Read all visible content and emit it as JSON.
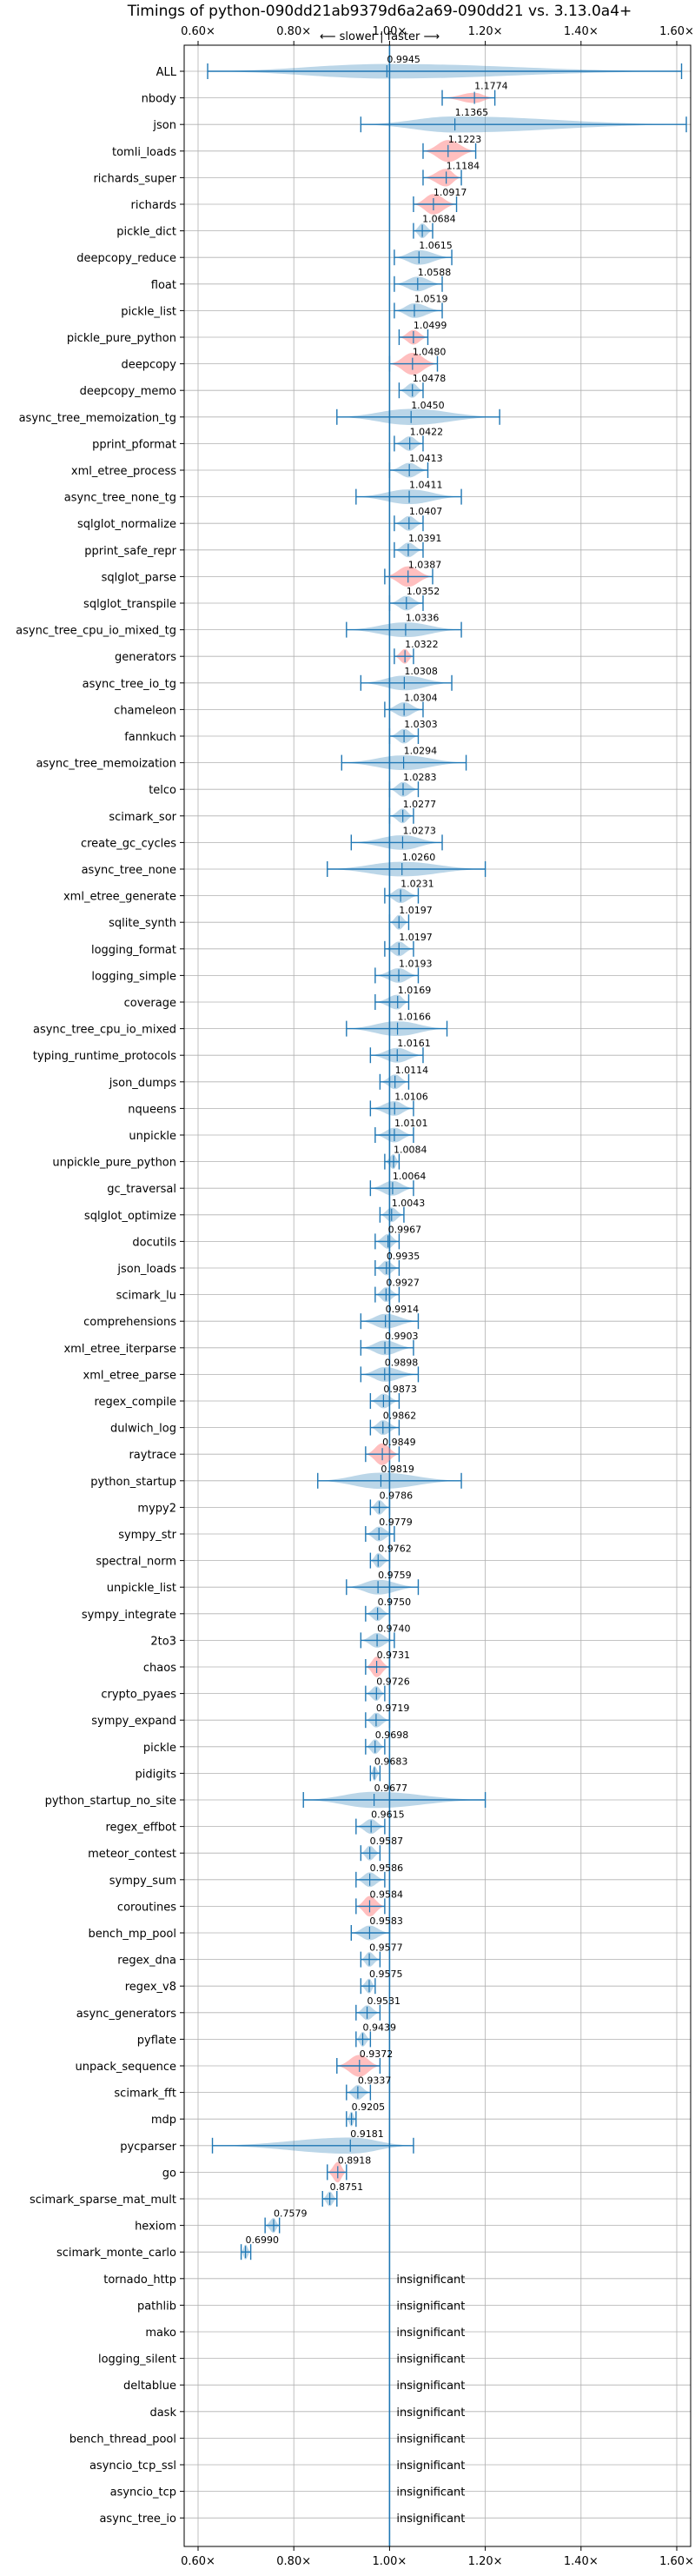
{
  "chart_data": {
    "type": "violin",
    "title": "Timings of python-090dd21ab9379d6a2a69-090dd21 vs. 3.13.0a4+",
    "direction_label": "⟵ slower | faster ⟶",
    "xlim": [
      0.6,
      1.6
    ],
    "x_ticks": [
      "0.60×",
      "0.80×",
      "1.00×",
      "1.20×",
      "1.40×",
      "1.60×"
    ],
    "x_tick_values": [
      0.6,
      0.8,
      1.0,
      1.2,
      1.4,
      1.6
    ],
    "colors": {
      "violin": "#1f77b4",
      "highlight": "#ff7f7f",
      "grid": "#b0b0b0"
    },
    "benchmarks": [
      {
        "name": "ALL",
        "value": 0.9945,
        "label": "0.9945",
        "whisker": [
          0.62,
          1.61
        ],
        "width": 0.5,
        "highlight": false
      },
      {
        "name": "nbody",
        "value": 1.1774,
        "label": "1.1774",
        "whisker": [
          1.11,
          1.22
        ],
        "width": 0.35,
        "highlight": true
      },
      {
        "name": "json",
        "value": 1.1365,
        "label": "1.1365",
        "whisker": [
          0.94,
          1.62
        ],
        "width": 0.55,
        "highlight": false
      },
      {
        "name": "tomli_loads",
        "value": 1.1223,
        "label": "1.1223",
        "whisker": [
          1.07,
          1.18
        ],
        "width": 0.75,
        "highlight": true
      },
      {
        "name": "richards_super",
        "value": 1.1184,
        "label": "1.1184",
        "whisker": [
          1.07,
          1.15
        ],
        "width": 0.6,
        "highlight": true
      },
      {
        "name": "richards",
        "value": 1.0917,
        "label": "1.0917",
        "whisker": [
          1.05,
          1.14
        ],
        "width": 0.7,
        "highlight": true
      },
      {
        "name": "pickle_dict",
        "value": 1.0684,
        "label": "1.0684",
        "whisker": [
          1.05,
          1.09
        ],
        "width": 0.5,
        "highlight": false
      },
      {
        "name": "deepcopy_reduce",
        "value": 1.0615,
        "label": "1.0615",
        "whisker": [
          1.01,
          1.13
        ],
        "width": 0.5,
        "highlight": false
      },
      {
        "name": "float",
        "value": 1.0588,
        "label": "1.0588",
        "whisker": [
          1.01,
          1.11
        ],
        "width": 0.5,
        "highlight": false
      },
      {
        "name": "pickle_list",
        "value": 1.0519,
        "label": "1.0519",
        "whisker": [
          1.01,
          1.11
        ],
        "width": 0.5,
        "highlight": false
      },
      {
        "name": "pickle_pure_python",
        "value": 1.0499,
        "label": "1.0499",
        "whisker": [
          1.02,
          1.08
        ],
        "width": 0.5,
        "highlight": true
      },
      {
        "name": "deepcopy",
        "value": 1.048,
        "label": "1.0480",
        "whisker": [
          1.0,
          1.1
        ],
        "width": 0.75,
        "highlight": true
      },
      {
        "name": "deepcopy_memo",
        "value": 1.0478,
        "label": "1.0478",
        "whisker": [
          1.02,
          1.07
        ],
        "width": 0.5,
        "highlight": false
      },
      {
        "name": "async_tree_memoization_tg",
        "value": 1.045,
        "label": "1.0450",
        "whisker": [
          0.89,
          1.23
        ],
        "width": 0.55,
        "highlight": false
      },
      {
        "name": "pprint_pformat",
        "value": 1.0422,
        "label": "1.0422",
        "whisker": [
          1.01,
          1.07
        ],
        "width": 0.5,
        "highlight": false
      },
      {
        "name": "xml_etree_process",
        "value": 1.0413,
        "label": "1.0413",
        "whisker": [
          1.0,
          1.08
        ],
        "width": 0.5,
        "highlight": false
      },
      {
        "name": "async_tree_none_tg",
        "value": 1.0411,
        "label": "1.0411",
        "whisker": [
          0.93,
          1.15
        ],
        "width": 0.5,
        "highlight": false
      },
      {
        "name": "sqlglot_normalize",
        "value": 1.0407,
        "label": "1.0407",
        "whisker": [
          1.01,
          1.07
        ],
        "width": 0.5,
        "highlight": false
      },
      {
        "name": "pprint_safe_repr",
        "value": 1.0391,
        "label": "1.0391",
        "whisker": [
          1.01,
          1.07
        ],
        "width": 0.5,
        "highlight": false
      },
      {
        "name": "sqlglot_parse",
        "value": 1.0387,
        "label": "1.0387",
        "whisker": [
          0.99,
          1.09
        ],
        "width": 0.7,
        "highlight": true
      },
      {
        "name": "sqlglot_transpile",
        "value": 1.0352,
        "label": "1.0352",
        "whisker": [
          1.0,
          1.07
        ],
        "width": 0.5,
        "highlight": false
      },
      {
        "name": "async_tree_cpu_io_mixed_tg",
        "value": 1.0336,
        "label": "1.0336",
        "whisker": [
          0.91,
          1.15
        ],
        "width": 0.5,
        "highlight": false
      },
      {
        "name": "generators",
        "value": 1.0322,
        "label": "1.0322",
        "whisker": [
          1.01,
          1.05
        ],
        "width": 0.5,
        "highlight": true
      },
      {
        "name": "async_tree_io_tg",
        "value": 1.0308,
        "label": "1.0308",
        "whisker": [
          0.94,
          1.13
        ],
        "width": 0.5,
        "highlight": false
      },
      {
        "name": "chameleon",
        "value": 1.0304,
        "label": "1.0304",
        "whisker": [
          0.99,
          1.07
        ],
        "width": 0.5,
        "highlight": false
      },
      {
        "name": "fannkuch",
        "value": 1.0303,
        "label": "1.0303",
        "whisker": [
          1.0,
          1.06
        ],
        "width": 0.5,
        "highlight": false
      },
      {
        "name": "async_tree_memoization",
        "value": 1.0294,
        "label": "1.0294",
        "whisker": [
          0.9,
          1.16
        ],
        "width": 0.5,
        "highlight": false
      },
      {
        "name": "telco",
        "value": 1.0283,
        "label": "1.0283",
        "whisker": [
          1.0,
          1.06
        ],
        "width": 0.5,
        "highlight": false
      },
      {
        "name": "scimark_sor",
        "value": 1.0277,
        "label": "1.0277",
        "whisker": [
          1.0,
          1.05
        ],
        "width": 0.5,
        "highlight": false
      },
      {
        "name": "create_gc_cycles",
        "value": 1.0273,
        "label": "1.0273",
        "whisker": [
          0.92,
          1.11
        ],
        "width": 0.5,
        "highlight": false
      },
      {
        "name": "async_tree_none",
        "value": 1.026,
        "label": "1.0260",
        "whisker": [
          0.87,
          1.2
        ],
        "width": 0.5,
        "highlight": false
      },
      {
        "name": "xml_etree_generate",
        "value": 1.0231,
        "label": "1.0231",
        "whisker": [
          0.99,
          1.06
        ],
        "width": 0.5,
        "highlight": false
      },
      {
        "name": "sqlite_synth",
        "value": 1.0197,
        "label": "1.0197",
        "whisker": [
          1.0,
          1.04
        ],
        "width": 0.5,
        "highlight": false
      },
      {
        "name": "logging_format",
        "value": 1.0197,
        "label": "1.0197",
        "whisker": [
          0.99,
          1.05
        ],
        "width": 0.5,
        "highlight": false
      },
      {
        "name": "logging_simple",
        "value": 1.0193,
        "label": "1.0193",
        "whisker": [
          0.97,
          1.06
        ],
        "width": 0.5,
        "highlight": false
      },
      {
        "name": "coverage",
        "value": 1.0169,
        "label": "1.0169",
        "whisker": [
          0.97,
          1.04
        ],
        "width": 0.5,
        "highlight": false
      },
      {
        "name": "async_tree_cpu_io_mixed",
        "value": 1.0166,
        "label": "1.0166",
        "whisker": [
          0.91,
          1.12
        ],
        "width": 0.5,
        "highlight": false
      },
      {
        "name": "typing_runtime_protocols",
        "value": 1.0161,
        "label": "1.0161",
        "whisker": [
          0.96,
          1.07
        ],
        "width": 0.5,
        "highlight": false
      },
      {
        "name": "json_dumps",
        "value": 1.0114,
        "label": "1.0114",
        "whisker": [
          0.98,
          1.04
        ],
        "width": 0.5,
        "highlight": false
      },
      {
        "name": "nqueens",
        "value": 1.0106,
        "label": "1.0106",
        "whisker": [
          0.96,
          1.05
        ],
        "width": 0.5,
        "highlight": false
      },
      {
        "name": "unpickle",
        "value": 1.0101,
        "label": "1.0101",
        "whisker": [
          0.97,
          1.05
        ],
        "width": 0.5,
        "highlight": false
      },
      {
        "name": "unpickle_pure_python",
        "value": 1.0084,
        "label": "1.0084",
        "whisker": [
          0.99,
          1.02
        ],
        "width": 0.5,
        "highlight": false
      },
      {
        "name": "gc_traversal",
        "value": 1.0064,
        "label": "1.0064",
        "whisker": [
          0.96,
          1.05
        ],
        "width": 0.5,
        "highlight": false
      },
      {
        "name": "sqlglot_optimize",
        "value": 1.0043,
        "label": "1.0043",
        "whisker": [
          0.98,
          1.03
        ],
        "width": 0.5,
        "highlight": false
      },
      {
        "name": "docutils",
        "value": 0.9967,
        "label": "0.9967",
        "whisker": [
          0.97,
          1.02
        ],
        "width": 0.5,
        "highlight": false
      },
      {
        "name": "json_loads",
        "value": 0.9935,
        "label": "0.9935",
        "whisker": [
          0.97,
          1.02
        ],
        "width": 0.5,
        "highlight": false
      },
      {
        "name": "scimark_lu",
        "value": 0.9927,
        "label": "0.9927",
        "whisker": [
          0.97,
          1.02
        ],
        "width": 0.5,
        "highlight": false
      },
      {
        "name": "comprehensions",
        "value": 0.9914,
        "label": "0.9914",
        "whisker": [
          0.94,
          1.06
        ],
        "width": 0.5,
        "highlight": false
      },
      {
        "name": "xml_etree_iterparse",
        "value": 0.9903,
        "label": "0.9903",
        "whisker": [
          0.94,
          1.05
        ],
        "width": 0.5,
        "highlight": false
      },
      {
        "name": "xml_etree_parse",
        "value": 0.9898,
        "label": "0.9898",
        "whisker": [
          0.94,
          1.06
        ],
        "width": 0.5,
        "highlight": false
      },
      {
        "name": "regex_compile",
        "value": 0.9873,
        "label": "0.9873",
        "whisker": [
          0.96,
          1.02
        ],
        "width": 0.5,
        "highlight": false
      },
      {
        "name": "dulwich_log",
        "value": 0.9862,
        "label": "0.9862",
        "whisker": [
          0.96,
          1.02
        ],
        "width": 0.5,
        "highlight": false
      },
      {
        "name": "raytrace",
        "value": 0.9849,
        "label": "0.9849",
        "whisker": [
          0.95,
          1.02
        ],
        "width": 0.75,
        "highlight": true
      },
      {
        "name": "python_startup",
        "value": 0.9819,
        "label": "0.9819",
        "whisker": [
          0.85,
          1.15
        ],
        "width": 0.55,
        "highlight": false
      },
      {
        "name": "mypy2",
        "value": 0.9786,
        "label": "0.9786",
        "whisker": [
          0.96,
          1.0
        ],
        "width": 0.5,
        "highlight": false
      },
      {
        "name": "sympy_str",
        "value": 0.9779,
        "label": "0.9779",
        "whisker": [
          0.95,
          1.01
        ],
        "width": 0.5,
        "highlight": false
      },
      {
        "name": "spectral_norm",
        "value": 0.9762,
        "label": "0.9762",
        "whisker": [
          0.96,
          1.0
        ],
        "width": 0.5,
        "highlight": false
      },
      {
        "name": "unpickle_list",
        "value": 0.9759,
        "label": "0.9759",
        "whisker": [
          0.91,
          1.06
        ],
        "width": 0.5,
        "highlight": false
      },
      {
        "name": "sympy_integrate",
        "value": 0.975,
        "label": "0.9750",
        "whisker": [
          0.95,
          1.0
        ],
        "width": 0.5,
        "highlight": false
      },
      {
        "name": "2to3",
        "value": 0.974,
        "label": "0.9740",
        "whisker": [
          0.94,
          1.01
        ],
        "width": 0.5,
        "highlight": false
      },
      {
        "name": "chaos",
        "value": 0.9731,
        "label": "0.9731",
        "whisker": [
          0.95,
          1.0
        ],
        "width": 0.7,
        "highlight": true
      },
      {
        "name": "crypto_pyaes",
        "value": 0.9726,
        "label": "0.9726",
        "whisker": [
          0.95,
          0.99
        ],
        "width": 0.5,
        "highlight": false
      },
      {
        "name": "sympy_expand",
        "value": 0.9719,
        "label": "0.9719",
        "whisker": [
          0.95,
          1.0
        ],
        "width": 0.5,
        "highlight": false
      },
      {
        "name": "pickle",
        "value": 0.9698,
        "label": "0.9698",
        "whisker": [
          0.95,
          0.99
        ],
        "width": 0.5,
        "highlight": false
      },
      {
        "name": "pidigits",
        "value": 0.9683,
        "label": "0.9683",
        "whisker": [
          0.96,
          0.98
        ],
        "width": 0.5,
        "highlight": false
      },
      {
        "name": "python_startup_no_site",
        "value": 0.9677,
        "label": "0.9677",
        "whisker": [
          0.82,
          1.2
        ],
        "width": 0.55,
        "highlight": false
      },
      {
        "name": "regex_effbot",
        "value": 0.9615,
        "label": "0.9615",
        "whisker": [
          0.93,
          0.99
        ],
        "width": 0.5,
        "highlight": false
      },
      {
        "name": "meteor_contest",
        "value": 0.9587,
        "label": "0.9587",
        "whisker": [
          0.94,
          0.98
        ],
        "width": 0.5,
        "highlight": false
      },
      {
        "name": "sympy_sum",
        "value": 0.9586,
        "label": "0.9586",
        "whisker": [
          0.93,
          0.99
        ],
        "width": 0.5,
        "highlight": false
      },
      {
        "name": "coroutines",
        "value": 0.9584,
        "label": "0.9584",
        "whisker": [
          0.93,
          0.99
        ],
        "width": 0.7,
        "highlight": true
      },
      {
        "name": "bench_mp_pool",
        "value": 0.9583,
        "label": "0.9583",
        "whisker": [
          0.92,
          1.0
        ],
        "width": 0.5,
        "highlight": false
      },
      {
        "name": "regex_dna",
        "value": 0.9577,
        "label": "0.9577",
        "whisker": [
          0.94,
          0.98
        ],
        "width": 0.5,
        "highlight": false
      },
      {
        "name": "regex_v8",
        "value": 0.9575,
        "label": "0.9575",
        "whisker": [
          0.94,
          0.97
        ],
        "width": 0.5,
        "highlight": false
      },
      {
        "name": "async_generators",
        "value": 0.9531,
        "label": "0.9531",
        "whisker": [
          0.93,
          0.98
        ],
        "width": 0.5,
        "highlight": false
      },
      {
        "name": "pyflate",
        "value": 0.9439,
        "label": "0.9439",
        "whisker": [
          0.93,
          0.96
        ],
        "width": 0.5,
        "highlight": false
      },
      {
        "name": "unpack_sequence",
        "value": 0.9372,
        "label": "0.9372",
        "whisker": [
          0.89,
          0.98
        ],
        "width": 0.75,
        "highlight": true
      },
      {
        "name": "scimark_fft",
        "value": 0.9337,
        "label": "0.9337",
        "whisker": [
          0.91,
          0.96
        ],
        "width": 0.5,
        "highlight": false
      },
      {
        "name": "mdp",
        "value": 0.9205,
        "label": "0.9205",
        "whisker": [
          0.91,
          0.93
        ],
        "width": 0.5,
        "highlight": false
      },
      {
        "name": "pycparser",
        "value": 0.9181,
        "label": "0.9181",
        "whisker": [
          0.63,
          1.05
        ],
        "width": 0.55,
        "highlight": false
      },
      {
        "name": "go",
        "value": 0.8918,
        "label": "0.8918",
        "whisker": [
          0.87,
          0.91
        ],
        "width": 0.7,
        "highlight": true
      },
      {
        "name": "scimark_sparse_mat_mult",
        "value": 0.8751,
        "label": "0.8751",
        "whisker": [
          0.86,
          0.89
        ],
        "width": 0.5,
        "highlight": false
      },
      {
        "name": "hexiom",
        "value": 0.7579,
        "label": "0.7579",
        "whisker": [
          0.74,
          0.77
        ],
        "width": 0.5,
        "highlight": false
      },
      {
        "name": "scimark_monte_carlo",
        "value": 0.699,
        "label": "0.6990",
        "whisker": [
          0.69,
          0.71
        ],
        "width": 0.5,
        "highlight": false
      },
      {
        "name": "tornado_http",
        "value": null,
        "label": "insignificant"
      },
      {
        "name": "pathlib",
        "value": null,
        "label": "insignificant"
      },
      {
        "name": "mako",
        "value": null,
        "label": "insignificant"
      },
      {
        "name": "logging_silent",
        "value": null,
        "label": "insignificant"
      },
      {
        "name": "deltablue",
        "value": null,
        "label": "insignificant"
      },
      {
        "name": "dask",
        "value": null,
        "label": "insignificant"
      },
      {
        "name": "bench_thread_pool",
        "value": null,
        "label": "insignificant"
      },
      {
        "name": "asyncio_tcp_ssl",
        "value": null,
        "label": "insignificant"
      },
      {
        "name": "asyncio_tcp",
        "value": null,
        "label": "insignificant"
      },
      {
        "name": "async_tree_io",
        "value": null,
        "label": "insignificant"
      }
    ]
  }
}
